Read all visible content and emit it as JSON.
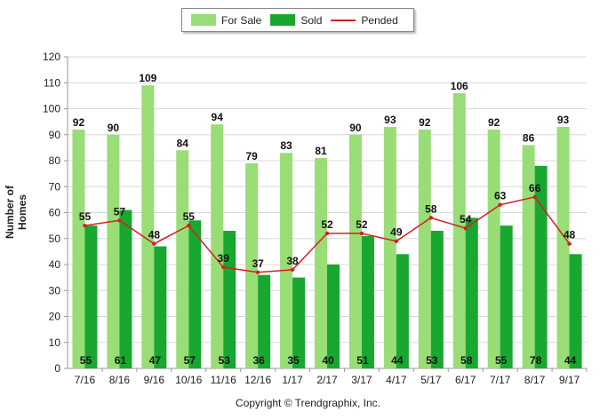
{
  "chart_data": {
    "type": "bar",
    "categories": [
      "7/16",
      "8/16",
      "9/16",
      "10/16",
      "11/16",
      "12/16",
      "1/17",
      "2/17",
      "3/17",
      "4/17",
      "5/17",
      "6/17",
      "7/17",
      "8/17",
      "9/17"
    ],
    "series": [
      {
        "name": "For Sale",
        "kind": "bar",
        "color": "#99dd77",
        "values": [
          92,
          90,
          109,
          84,
          94,
          79,
          83,
          81,
          90,
          93,
          92,
          106,
          92,
          86,
          93
        ]
      },
      {
        "name": "Sold",
        "kind": "bar",
        "color": "#18a830",
        "values": [
          55,
          61,
          47,
          57,
          53,
          36,
          35,
          40,
          51,
          44,
          53,
          58,
          55,
          78,
          44
        ]
      },
      {
        "name": "Pended",
        "kind": "line",
        "color": "#d42020",
        "values": [
          55,
          57,
          48,
          55,
          39,
          37,
          38,
          52,
          52,
          49,
          58,
          54,
          63,
          66,
          48
        ]
      }
    ],
    "ylabel": "Number of Homes",
    "ylim": [
      0,
      120
    ],
    "yticks": [
      0,
      10,
      20,
      30,
      40,
      50,
      60,
      70,
      80,
      90,
      100,
      110,
      120
    ],
    "grid": true,
    "legend_position": "top-center"
  },
  "copyright": "Copyright © Trendgraphix, Inc."
}
